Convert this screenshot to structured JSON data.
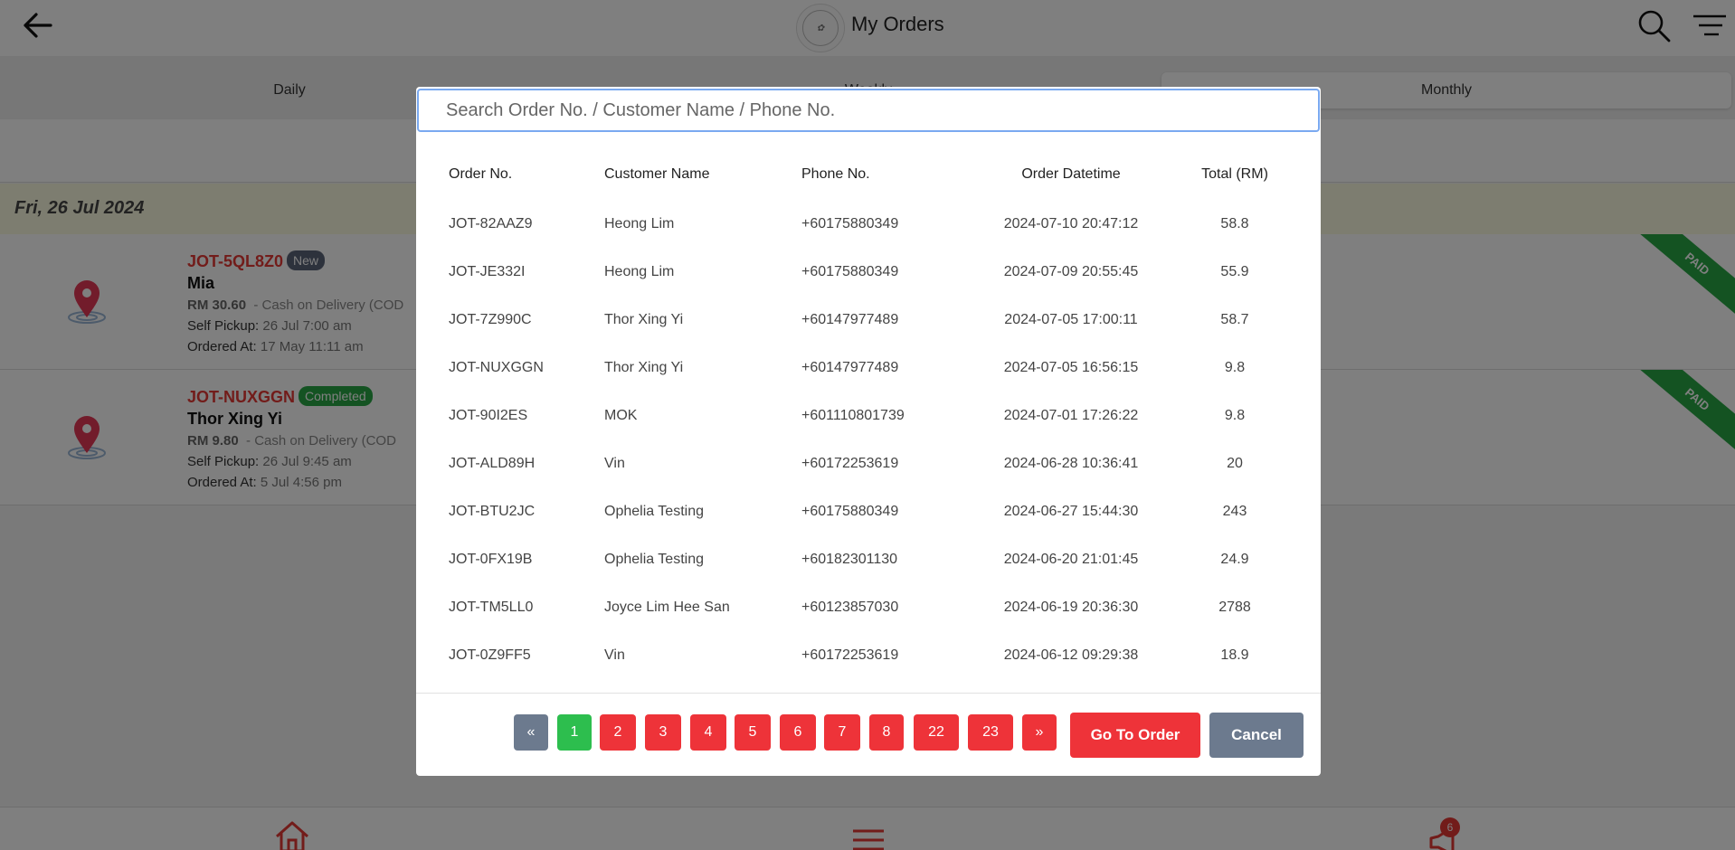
{
  "header": {
    "title": "My Orders"
  },
  "tabs": [
    {
      "label": "Daily"
    },
    {
      "label": "Weekly"
    },
    {
      "label": "Monthly"
    }
  ],
  "date_header": "Fri, 26 Jul 2024",
  "orders_bg": [
    {
      "order_no": "JOT-5QL8Z0",
      "badge": "New",
      "customer": "Mia",
      "amount": "RM 30.60",
      "payment": "- Cash on Delivery (COD",
      "pickup_label": "Self Pickup:",
      "pickup_value": "26 Jul 7:00 am",
      "ordered_label": "Ordered At:",
      "ordered_value": "17 May 11:11 am",
      "ribbon": "PAID"
    },
    {
      "order_no": "JOT-NUXGGN",
      "badge": "Completed",
      "customer": "Thor Xing Yi",
      "amount": "RM 9.80",
      "payment": "- Cash on Delivery (COD",
      "pickup_label": "Self Pickup:",
      "pickup_value": "26 Jul 9:45 am",
      "ordered_label": "Ordered At:",
      "ordered_value": "5 Jul 4:56 pm",
      "ribbon": "PAID"
    }
  ],
  "bottom_nav": {
    "badge_count": "6"
  },
  "modal": {
    "search_placeholder": "Search Order No. / Customer Name / Phone No.",
    "columns": [
      "Order No.",
      "Customer Name",
      "Phone No.",
      "Order Datetime",
      "Total (RM)"
    ],
    "rows": [
      [
        "JOT-82AAZ9",
        "Heong Lim",
        "+60175880349",
        "2024-07-10 20:47:12",
        "58.8"
      ],
      [
        "JOT-JE332I",
        "Heong Lim",
        "+60175880349",
        "2024-07-09 20:55:45",
        "55.9"
      ],
      [
        "JOT-7Z990C",
        "Thor Xing Yi",
        "+60147977489",
        "2024-07-05 17:00:11",
        "58.7"
      ],
      [
        "JOT-NUXGGN",
        "Thor Xing Yi",
        "+60147977489",
        "2024-07-05 16:56:15",
        "9.8"
      ],
      [
        "JOT-90I2ES",
        "MOK",
        "+601110801739",
        "2024-07-01 17:26:22",
        "9.8"
      ],
      [
        "JOT-ALD89H",
        "Vin",
        "+60172253619",
        "2024-06-28 10:36:41",
        "20"
      ],
      [
        "JOT-BTU2JC",
        "Ophelia Testing",
        "+60175880349",
        "2024-06-27 15:44:30",
        "243"
      ],
      [
        "JOT-0FX19B",
        "Ophelia Testing",
        "+60182301130",
        "2024-06-20 21:01:45",
        "24.9"
      ],
      [
        "JOT-TM5LL0",
        "Joyce Lim Hee San",
        "+60123857030",
        "2024-06-19 20:36:30",
        "2788"
      ],
      [
        "JOT-0Z9FF5",
        "Vin",
        "+60172253619",
        "2024-06-12 09:29:38",
        "18.9"
      ]
    ],
    "pagination": {
      "prev": "«",
      "pages": [
        "1",
        "2",
        "3",
        "4",
        "5",
        "6",
        "7",
        "8",
        "22",
        "23"
      ],
      "next": "»",
      "current": "1"
    },
    "go_button": "Go To Order",
    "cancel_button": "Cancel"
  },
  "colors": {
    "accent_red": "#ee3339",
    "active_page_green": "#2dbe4e",
    "neutral_gray": "#6c7a8e",
    "paid_ribbon_green": "#28a745"
  },
  "icons": [
    "back-arrow-icon",
    "logo",
    "search-icon",
    "filter-icon",
    "location-pin-icon",
    "home-icon",
    "menu-icon",
    "megaphone-icon"
  ]
}
